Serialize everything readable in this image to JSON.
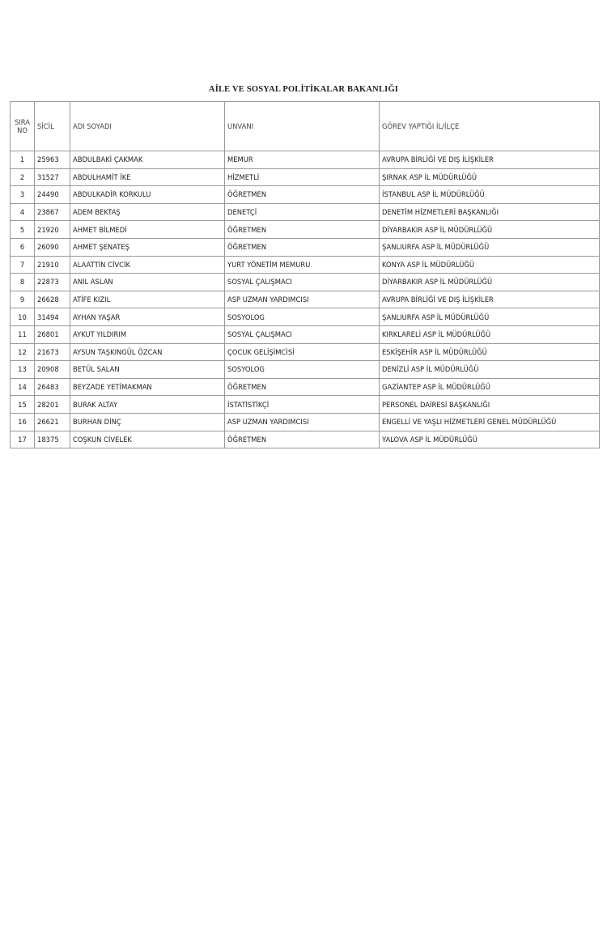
{
  "header": {
    "title": "AİLE VE SOSYAL POLİTİKALAR BAKANLIĞI"
  },
  "table": {
    "columns": [
      "SIRA NO",
      "SİCİL",
      "ADI SOYADI",
      "UNVANI",
      "GÖREV YAPTIĞI İL/İLÇE"
    ],
    "rows": [
      [
        "1",
        "25963",
        "ABDULBAKİ ÇAKMAK",
        "MEMUR",
        "AVRUPA BİRLİĞİ VE DIŞ İLİŞKİLER"
      ],
      [
        "2",
        "31527",
        "ABDULHAMİT İKE",
        "HİZMETLİ",
        "ŞIRNAK ASP İL MÜDÜRLÜĞÜ"
      ],
      [
        "3",
        "24490",
        "ABDULKADİR KORKULU",
        "ÖĞRETMEN",
        "İSTANBUL ASP İL MÜDÜRLÜĞÜ"
      ],
      [
        "4",
        "23867",
        "ADEM BEKTAŞ",
        "DENETÇİ",
        "DENETİM HİZMETLERİ BAŞKANLIĞI"
      ],
      [
        "5",
        "21920",
        "AHMET BİLMEDİ",
        "ÖĞRETMEN",
        "DİYARBAKIR ASP İL MÜDÜRLÜĞÜ"
      ],
      [
        "6",
        "26090",
        "AHMET ŞENATEŞ",
        "ÖĞRETMEN",
        "ŞANLIURFA ASP İL MÜDÜRLÜĞÜ"
      ],
      [
        "7",
        "21910",
        "ALAATTİN CİVCİK",
        "YURT YÖNETİM MEMURU",
        "KONYA ASP İL MÜDÜRLÜĞÜ"
      ],
      [
        "8",
        "22873",
        "ANIL ASLAN",
        "SOSYAL ÇALIŞMACI",
        "DİYARBAKIR ASP İL MÜDÜRLÜĞÜ"
      ],
      [
        "9",
        "26628",
        "ATİFE KIZIL",
        "ASP UZMAN YARDIMCISI",
        "AVRUPA BİRLİĞİ VE DIŞ İLİŞKİLER"
      ],
      [
        "10",
        "31494",
        "AYHAN YAŞAR",
        "SOSYOLOG",
        "ŞANLIURFA ASP İL MÜDÜRLÜĞÜ"
      ],
      [
        "11",
        "26801",
        "AYKUT YILDIRIM",
        "SOSYAL ÇALIŞMACI",
        "KIRKLARELİ ASP İL MÜDÜRLÜĞÜ"
      ],
      [
        "12",
        "21673",
        "AYSUN TAŞKINGÜL ÖZCAN",
        "ÇOCUK GELİŞİMCİSİ",
        "ESKİŞEHİR ASP İL MÜDÜRLÜĞÜ"
      ],
      [
        "13",
        "20908",
        "BETÜL SALAN",
        "SOSYOLOG",
        "DENİZLİ ASP İL MÜDÜRLÜĞÜ"
      ],
      [
        "14",
        "26483",
        "BEYZADE YETİMAKMAN",
        "ÖĞRETMEN",
        "GAZİANTEP ASP İL MÜDÜRLÜĞÜ"
      ],
      [
        "15",
        "28201",
        "BURAK ALTAY",
        "İSTATİSTİKÇİ",
        "PERSONEL DAİRESİ BAŞKANLIĞI"
      ],
      [
        "16",
        "26621",
        "BURHAN DİNÇ",
        "ASP UZMAN YARDIMCISI",
        "ENGELLİ VE YAŞLI HİZMETLERİ GENEL MÜDÜRLÜĞÜ"
      ],
      [
        "17",
        "18375",
        "COŞKUN CİVELEK",
        "ÖĞRETMEN",
        "YALOVA ASP İL MÜDÜRLÜĞÜ"
      ]
    ]
  }
}
